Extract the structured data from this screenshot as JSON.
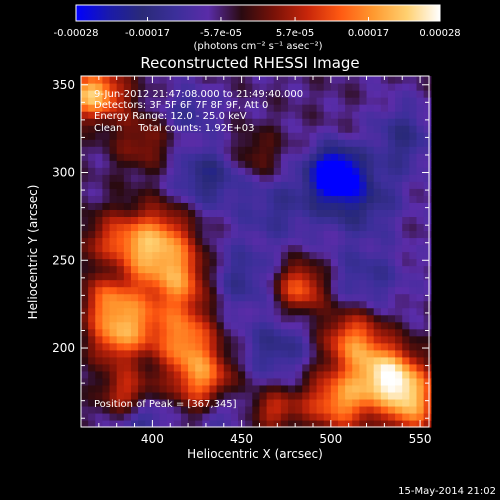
{
  "colorbar": {
    "tick_labels": [
      "-0.00028",
      "-0.00017",
      "-5.7e-05",
      "5.7e-05",
      "0.00017",
      "0.00028"
    ],
    "tick_values": [
      -0.00028,
      -0.00017,
      -5.7e-05,
      5.7e-05,
      0.00017,
      0.00028
    ],
    "range": [
      -0.00028,
      0.00028
    ],
    "unit_label": "(photons cm⁻² s⁻¹ asec⁻²)",
    "colors": [
      "#0000ff",
      "#1a1aaa",
      "#2a2a78",
      "#3b2f9a",
      "#5a2ca8",
      "#2a0a10",
      "#7a1208",
      "#c8260a",
      "#ff5a12",
      "#ff9a30",
      "#ffd070",
      "#ffffff"
    ]
  },
  "chart_data": {
    "type": "heatmap",
    "title": "Reconstructed RHESSI Image",
    "xlabel": "Heliocentric X (arcsec)",
    "ylabel": "Heliocentric Y (arcsec)",
    "xlim": [
      360,
      555
    ],
    "ylim": [
      155,
      355
    ],
    "x_ticks": [
      400,
      450,
      500,
      550
    ],
    "y_ticks": [
      200,
      250,
      300,
      350
    ],
    "pixel_size_arcsec": 4,
    "annotations": [
      "9-Jun-2012 21:47:08.000 to 21:49:40.000",
      "Detectors: 3F 5F 6F 7F 8F 9F, Att 0",
      "Energy Range: 12.0 - 25.0 keV",
      "Clean     Total counts: 1.92E+03"
    ],
    "peak_label": "Position of Peak = [367,345]",
    "peak_position": [
      367,
      345
    ],
    "sources": [
      {
        "x": 367,
        "y": 345,
        "amp": 0.00028,
        "sx": 12,
        "sy": 10
      },
      {
        "x": 395,
        "y": 318,
        "amp": 0.0001,
        "sx": 12,
        "sy": 12
      },
      {
        "x": 382,
        "y": 255,
        "amp": 0.00022,
        "sx": 14,
        "sy": 14
      },
      {
        "x": 405,
        "y": 262,
        "amp": 0.00018,
        "sx": 12,
        "sy": 14
      },
      {
        "x": 415,
        "y": 238,
        "amp": 0.0002,
        "sx": 12,
        "sy": 14
      },
      {
        "x": 375,
        "y": 225,
        "amp": 0.00017,
        "sx": 10,
        "sy": 10
      },
      {
        "x": 378,
        "y": 205,
        "amp": 0.00016,
        "sx": 10,
        "sy": 10
      },
      {
        "x": 392,
        "y": 215,
        "amp": 0.00015,
        "sx": 10,
        "sy": 12
      },
      {
        "x": 418,
        "y": 205,
        "amp": 0.0002,
        "sx": 12,
        "sy": 12
      },
      {
        "x": 428,
        "y": 182,
        "amp": 0.00021,
        "sx": 12,
        "sy": 12
      },
      {
        "x": 385,
        "y": 175,
        "amp": 0.00014,
        "sx": 10,
        "sy": 10
      },
      {
        "x": 483,
        "y": 235,
        "amp": 0.00019,
        "sx": 10,
        "sy": 10
      },
      {
        "x": 512,
        "y": 205,
        "amp": 0.0002,
        "sx": 12,
        "sy": 12
      },
      {
        "x": 530,
        "y": 185,
        "amp": 0.00026,
        "sx": 12,
        "sy": 12
      },
      {
        "x": 505,
        "y": 170,
        "amp": 0.00022,
        "sx": 14,
        "sy": 12
      },
      {
        "x": 545,
        "y": 170,
        "amp": 0.00024,
        "sx": 10,
        "sy": 14
      },
      {
        "x": 468,
        "y": 165,
        "amp": 0.00013,
        "sx": 10,
        "sy": 8
      },
      {
        "x": 458,
        "y": 310,
        "amp": 8e-05,
        "sx": 10,
        "sy": 10
      },
      {
        "x": 502,
        "y": 300,
        "amp": -0.00028,
        "sx": 10,
        "sy": 10
      },
      {
        "x": 515,
        "y": 285,
        "amp": -0.00012,
        "sx": 16,
        "sy": 14
      },
      {
        "x": 430,
        "y": 298,
        "amp": -0.00012,
        "sx": 14,
        "sy": 12
      },
      {
        "x": 470,
        "y": 280,
        "amp": -8e-05,
        "sx": 16,
        "sy": 14
      },
      {
        "x": 420,
        "y": 335,
        "amp": -8e-05,
        "sx": 12,
        "sy": 10
      },
      {
        "x": 540,
        "y": 320,
        "amp": -0.0001,
        "sx": 12,
        "sy": 14
      },
      {
        "x": 450,
        "y": 240,
        "amp": -9e-05,
        "sx": 14,
        "sy": 14
      },
      {
        "x": 377,
        "y": 248,
        "amp": -0.00012,
        "sx": 8,
        "sy": 8
      },
      {
        "x": 520,
        "y": 240,
        "amp": -8e-05,
        "sx": 16,
        "sy": 14
      },
      {
        "x": 470,
        "y": 200,
        "amp": -0.0001,
        "sx": 14,
        "sy": 12
      },
      {
        "x": 395,
        "y": 160,
        "amp": -0.0001,
        "sx": 10,
        "sy": 8
      },
      {
        "x": 440,
        "y": 165,
        "amp": -8e-05,
        "sx": 10,
        "sy": 10
      }
    ],
    "background": -6e-05
  },
  "footer": {
    "timestamp": "15-May-2014 21:02"
  }
}
